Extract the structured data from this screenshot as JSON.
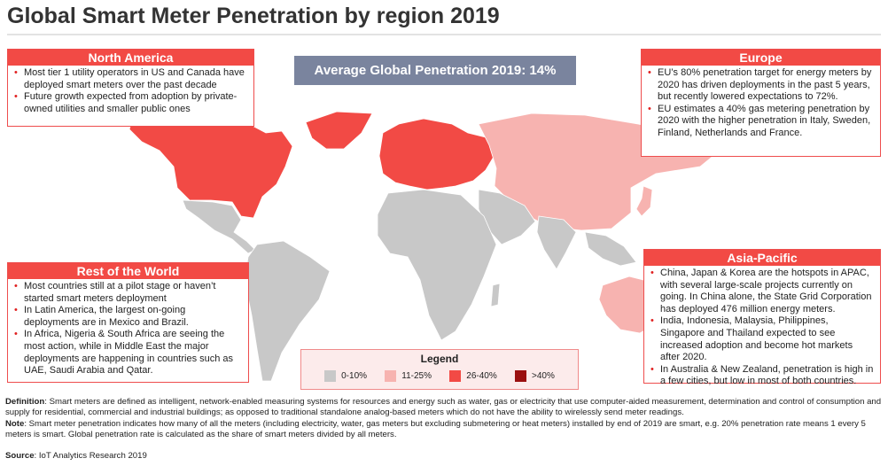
{
  "title": "Global Smart Meter Penetration by region 2019",
  "average_banner": "Average Global Penetration 2019: 14%",
  "regions": {
    "north_america": {
      "heading": "North America",
      "bullets": [
        "Most tier 1 utility operators in US and Canada have deployed smart meters over the past decade",
        "Future growth expected from adoption by private-owned utilities and smaller public ones"
      ]
    },
    "europe": {
      "heading": "Europe",
      "bullets": [
        "EU’s 80% penetration target for energy meters by 2020 has driven deployments in the past 5 years, but recently lowered expectations to 72%.",
        "EU estimates a 40% gas metering penetration by 2020 with the higher penetration in Italy, Sweden, Finland, Netherlands and France."
      ]
    },
    "rest_of_world": {
      "heading": "Rest of the World",
      "bullets": [
        "Most countries still at a pilot stage or haven’t started smart meters deployment",
        "In Latin America, the largest on-going deployments are in Mexico and Brazil.",
        "In Africa, Nigeria & South Africa are seeing the most action, while in Middle East the major deployments are happening in countries such as UAE, Saudi Arabia and Qatar."
      ]
    },
    "asia_pacific": {
      "heading": "Asia-Pacific",
      "bullets": [
        "China, Japan & Korea are the hotspots in APAC, with several large-scale projects currently on going. In China alone, the State Grid Corporation has deployed 476 million energy meters.",
        "India, Indonesia, Malaysia, Philippines, Singapore and Thailand expected to see increased adoption and become hot markets after 2020.",
        "In Australia & New Zealand, penetration is high in a few cities, but low in most of both countries."
      ]
    }
  },
  "legend": {
    "title": "Legend",
    "items": [
      {
        "label": "0-10%",
        "color": "#c8c8c8"
      },
      {
        "label": "11-25%",
        "color": "#f7b3b0"
      },
      {
        "label": "26-40%",
        "color": "#f24a45"
      },
      {
        "label": ">40%",
        "color": "#9b1010"
      }
    ]
  },
  "map_fills": {
    "north_america": "#f24a45",
    "europe": "#f24a45",
    "russia_china_japan": "#f7b3b0",
    "australia": "#f7b3b0",
    "rest": "#c8c8c8"
  },
  "footer": {
    "definition_label": "Definition",
    "definition_text": ": Smart meters are defined as intelligent, network-enabled measuring systems for resources and energy such as water, gas or electricity that use computer-aided measurement, determination and control of consumption and supply for residential, commercial and industrial buildings;  as opposed to traditional standalone analog-based meters which do not have the ability to wirelessly send meter readings.",
    "note_label": "Note",
    "note_text": ": Smart meter penetration indicates how many of all the meters (including electricity, water, gas meters but excluding submetering or heat meters) installed by end of 2019 are smart, e.g. 20% penetration rate means 1 every 5 meters is smart. Global penetration rate is calculated as the share of smart meters divided by all meters.",
    "source_label": "Source",
    "source_text": ": IoT Analytics Research 2019"
  }
}
